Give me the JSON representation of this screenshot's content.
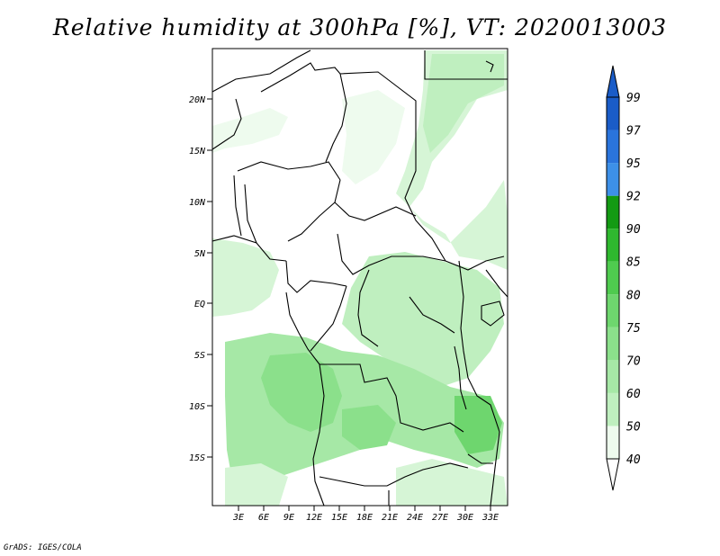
{
  "title": "Relative humidity at 300hPa [%], VT: 2020013003",
  "credit": "GrADS: IGES/COLA",
  "map": {
    "lat_labels": [
      "20N",
      "15N",
      "10N",
      "5N",
      "EQ",
      "5S",
      "10S",
      "15S"
    ],
    "lon_labels": [
      "3E",
      "6E",
      "9E",
      "12E",
      "15E",
      "18E",
      "21E",
      "24E",
      "27E",
      "30E",
      "33E"
    ]
  },
  "colorbar": {
    "levels": [
      "40",
      "50",
      "60",
      "70",
      "75",
      "80",
      "85",
      "90",
      "92",
      "95",
      "97",
      "99"
    ],
    "colors": [
      "#eefbee",
      "#d6f5d6",
      "#bfefbf",
      "#a6e8a6",
      "#8be08b",
      "#6ed66e",
      "#4fcb4f",
      "#2fb82f",
      "#139a13",
      "#3d90e8",
      "#2a74dc",
      "#1a5cc8"
    ]
  },
  "chart_data": {
    "type": "heatmap",
    "title": "Relative humidity at 300hPa [%], VT: 2020013003",
    "units": "%",
    "valid_time": "2020013003",
    "lat_ticks": [
      "20N",
      "15N",
      "10N",
      "5N",
      "EQ",
      "5S",
      "10S",
      "15S"
    ],
    "lon_ticks": [
      "3E",
      "6E",
      "9E",
      "12E",
      "15E",
      "18E",
      "21E",
      "24E",
      "27E",
      "30E",
      "33E"
    ],
    "contour_levels": [
      40,
      50,
      60,
      70,
      75,
      80,
      85,
      90,
      92,
      95,
      97,
      99
    ]
  }
}
